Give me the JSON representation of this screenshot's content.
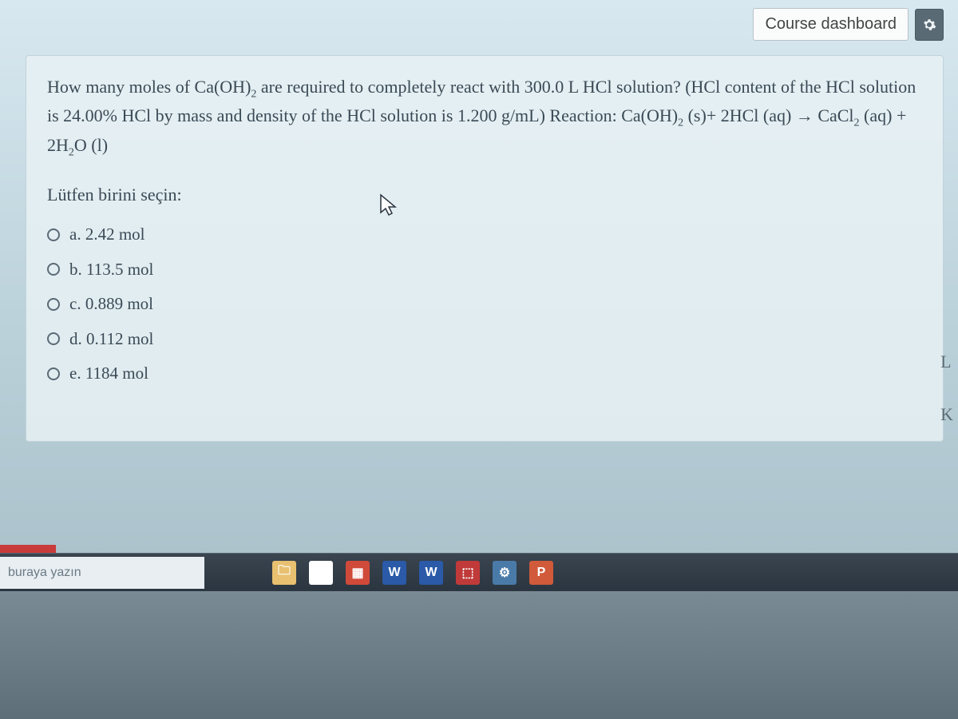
{
  "header": {
    "dashboard_label": "Course dashboard"
  },
  "question": {
    "text_html": "How many moles of Ca(OH)<span class='sub2'>2</span> are required to completely react with 300.0 L HCl solution? (HCl content of the HCl solution is 24.00% HCl by mass and density of the HCl solution is 1.200 g/mL) Reaction: Ca(OH)<span class='sub2'>2</span> (s)+ 2HCl (aq) → CaCl<span class='sub2'>2</span> (aq) + 2H<span class='sub2'>2</span>O (l)",
    "prompt": "Lütfen birini seçin:",
    "options": [
      {
        "key": "a",
        "label": "a. 2.42 mol"
      },
      {
        "key": "b",
        "label": "b. 113.5 mol"
      },
      {
        "key": "c",
        "label": "c. 0.889 mol"
      },
      {
        "key": "d",
        "label": "d. 0.112 mol"
      },
      {
        "key": "e",
        "label": "e. 1184 mol"
      }
    ]
  },
  "side": {
    "l": "L",
    "k": "K"
  },
  "taskbar": {
    "search_placeholder": "buraya yazın",
    "icons": [
      {
        "name": "file-explorer-icon",
        "bg": "#e8c070",
        "glyph": "🗀"
      },
      {
        "name": "chrome-icon",
        "bg": "#ffffff",
        "glyph": "◯"
      },
      {
        "name": "store-icon",
        "bg": "#d04a3a",
        "glyph": "▦"
      },
      {
        "name": "word-icon-1",
        "bg": "#2a5aa8",
        "glyph": "W"
      },
      {
        "name": "word-icon-2",
        "bg": "#2a5aa8",
        "glyph": "W"
      },
      {
        "name": "pdf-icon",
        "bg": "#c03a3a",
        "glyph": "⬚"
      },
      {
        "name": "settings-icon",
        "bg": "#4a7aa8",
        "glyph": "⚙"
      },
      {
        "name": "powerpoint-icon",
        "bg": "#d05a3a",
        "glyph": "P"
      }
    ]
  },
  "colors": {
    "card_bg": "#e8f1f5",
    "text": "#3a4a55",
    "accent_red": "#c93a3a"
  }
}
